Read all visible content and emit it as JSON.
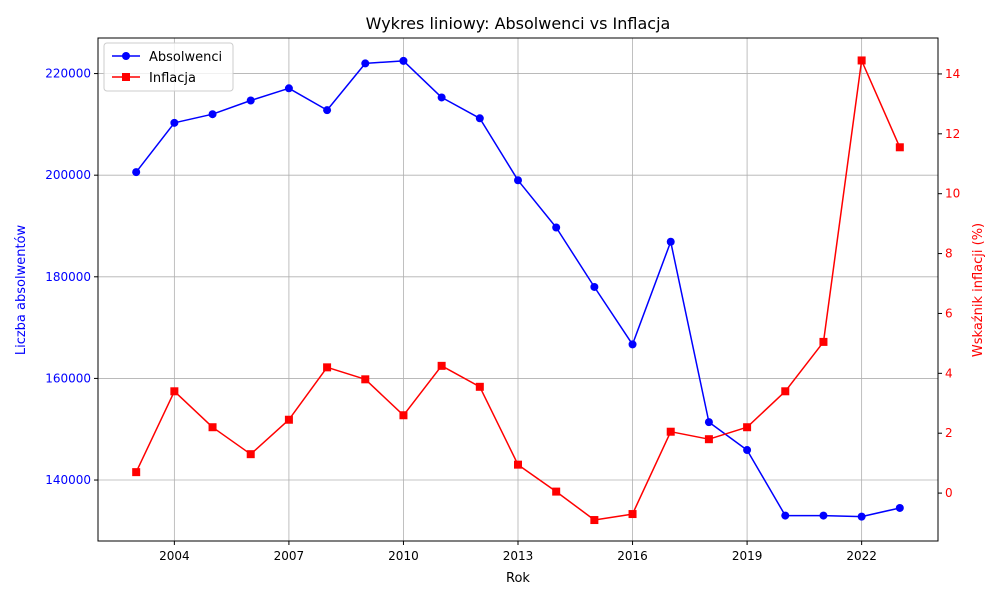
{
  "chart_data": {
    "type": "line",
    "title": "Wykres liniowy: Absolwenci vs Inflacja",
    "xlabel": "Rok",
    "ylabel_left": "Liczba absolwentów",
    "ylabel_right": "Wskaźnik inflacji (%)",
    "x": [
      2003,
      2004,
      2005,
      2006,
      2007,
      2008,
      2009,
      2010,
      2011,
      2012,
      2013,
      2014,
      2015,
      2016,
      2017,
      2018,
      2019,
      2020,
      2021,
      2022,
      2023
    ],
    "xlim": [
      2002,
      2024
    ],
    "x_ticks": [
      2004,
      2007,
      2010,
      2013,
      2016,
      2019,
      2022
    ],
    "ylim_left": [
      128000,
      227000
    ],
    "y_ticks_left": [
      140000,
      160000,
      180000,
      200000,
      220000
    ],
    "ylim_right": [
      -1.6,
      15.2
    ],
    "y_ticks_right": [
      0,
      2,
      4,
      6,
      8,
      10,
      12,
      14
    ],
    "grid": true,
    "legend_position": "top-left",
    "series": [
      {
        "name": "Absolwenci",
        "axis": "left",
        "color": "#0000ff",
        "marker": "circle",
        "values": [
          200600,
          210300,
          212000,
          214700,
          217100,
          212800,
          222000,
          222500,
          215300,
          211200,
          199000,
          189700,
          178000,
          166700,
          186900,
          151400,
          145900,
          133000,
          133000,
          132800,
          134500
        ]
      },
      {
        "name": "Inflacja",
        "axis": "right",
        "color": "#ff0000",
        "marker": "square",
        "values": [
          0.7,
          3.4,
          2.2,
          1.3,
          2.45,
          4.2,
          3.8,
          2.6,
          4.25,
          3.55,
          0.95,
          0.05,
          -0.9,
          -0.7,
          2.05,
          1.8,
          2.2,
          3.4,
          5.05,
          14.45,
          11.55
        ]
      }
    ]
  }
}
